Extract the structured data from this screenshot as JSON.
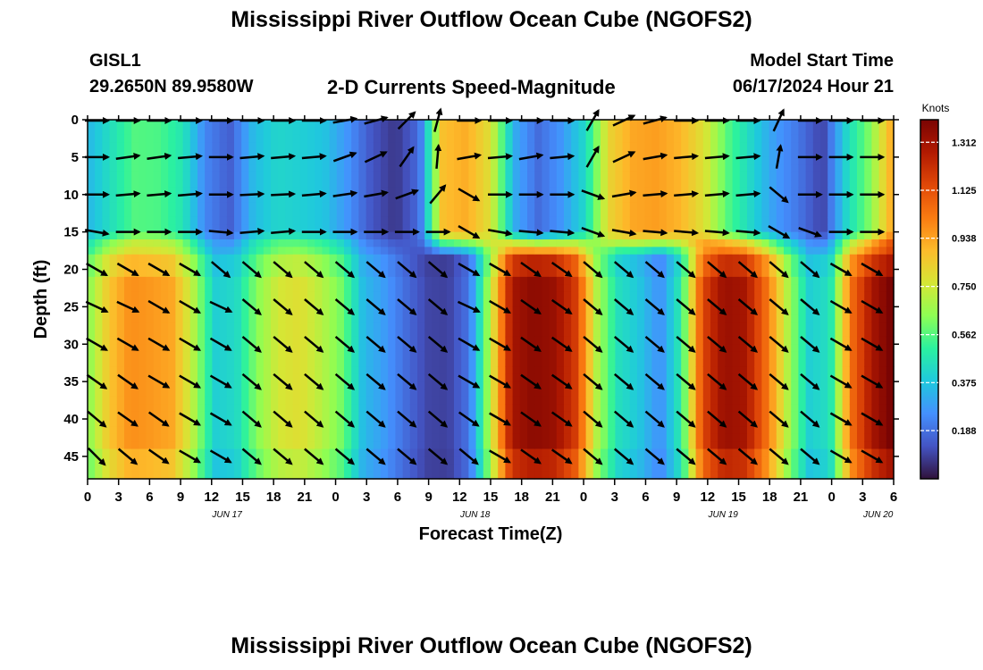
{
  "header": {
    "title": "Mississippi River Outflow Ocean Cube (NGOFS2)",
    "station": "GISL1",
    "coords": "29.2650N  89.9580W",
    "product": "2-D Currents Speed-Magnitude",
    "model_start_label": "Model Start Time",
    "model_start_value": "06/17/2024 Hour 21"
  },
  "footer": {
    "title": "Mississippi River Outflow Ocean Cube (NGOFS2)"
  },
  "chart_data": {
    "type": "heatmap",
    "title": "2-D Currents Speed-Magnitude",
    "xlabel": "Forecast Time(Z)",
    "ylabel": "Depth (ft)",
    "x_ticks": [
      "0",
      "3",
      "6",
      "9",
      "12",
      "15",
      "18",
      "21",
      "0",
      "3",
      "6",
      "9",
      "12",
      "15",
      "18",
      "21",
      "0",
      "3",
      "6",
      "9",
      "12",
      "15",
      "18",
      "21",
      "0",
      "3",
      "6"
    ],
    "date_labels": [
      {
        "text": "JUN 17",
        "tick_index": 4.5
      },
      {
        "text": "JUN 18",
        "tick_index": 12.5
      },
      {
        "text": "JUN 19",
        "tick_index": 20.5
      },
      {
        "text": "JUN 20",
        "tick_index": 25.5
      }
    ],
    "y_ticks": [
      "0",
      "5",
      "10",
      "15",
      "20",
      "25",
      "30",
      "35",
      "40",
      "45"
    ],
    "y_range": [
      0,
      48
    ],
    "y_inverted": true,
    "colorbar": {
      "label": "Knots",
      "ticks": [
        "1.312",
        "1.125",
        "0.938",
        "0.750",
        "0.562",
        "0.375",
        "0.188"
      ],
      "range": [
        0,
        1.4
      ],
      "colors": [
        "#30123b",
        "#4454c4",
        "#4490fe",
        "#1fc9dd",
        "#2bf19f",
        "#8efe53",
        "#d6e635",
        "#fdbb2b",
        "#fa7b11",
        "#e04808",
        "#b21a01",
        "#7a0403"
      ]
    },
    "surface_layer_depths": [
      0,
      5,
      10,
      15
    ],
    "deep_layer_depths": [
      20,
      25,
      30,
      35,
      40,
      45
    ],
    "surface_speed_by_column": [
      0.34,
      0.45,
      0.56,
      0.55,
      0.47,
      0.23,
      0.15,
      0.35,
      0.42,
      0.4,
      0.37,
      0.26,
      0.13,
      0.07,
      0.18,
      0.88,
      0.92,
      0.78,
      0.32,
      0.18,
      0.27,
      0.43,
      0.82,
      0.93,
      0.95,
      0.9,
      0.78,
      0.56,
      0.42,
      0.28,
      0.2,
      0.09,
      0.42,
      0.62,
      0.95
    ],
    "deep_speed_by_column": [
      0.62,
      0.86,
      0.98,
      0.96,
      0.93,
      0.7,
      0.4,
      0.43,
      0.63,
      0.76,
      0.79,
      0.71,
      0.6,
      0.35,
      0.28,
      0.18,
      0.1,
      0.09,
      0.2,
      0.72,
      1.3,
      1.36,
      1.33,
      1.18,
      0.7,
      0.45,
      0.38,
      0.25,
      0.5,
      1.15,
      1.33,
      1.3,
      1.05,
      0.7,
      0.4,
      0.45,
      1.05,
      1.3,
      1.42
    ],
    "vector_columns": [
      0,
      2.5,
      6,
      9,
      15,
      16,
      20,
      24,
      4.5,
      5,
      5.5,
      6,
      12.75,
      15.5,
      18.5,
      21.5,
      2,
      3.5,
      6.5,
      10,
      13,
      16,
      19,
      22,
      0,
      2,
      4.5
    ],
    "arrow_angles_by_row": {
      "0": [
        0,
        0,
        0,
        0,
        0,
        0,
        0,
        0,
        -10,
        -15,
        -45,
        -75,
        0,
        0,
        0,
        0,
        -60,
        -25,
        -15,
        0,
        0,
        0,
        -65,
        0,
        0,
        0
      ],
      "5": [
        0,
        -8,
        -8,
        -5,
        0,
        -5,
        -5,
        -5,
        -20,
        -25,
        -55,
        -85,
        -10,
        -5,
        -10,
        -5,
        -60,
        -25,
        -10,
        -5,
        -5,
        -5,
        -80,
        0,
        0,
        0
      ],
      "10": [
        0,
        -5,
        -5,
        -5,
        0,
        -3,
        -3,
        -5,
        -8,
        -10,
        -20,
        -50,
        30,
        0,
        0,
        0,
        20,
        -10,
        -5,
        -5,
        -5,
        -5,
        40,
        0,
        0,
        0
      ],
      "15": [
        10,
        0,
        0,
        0,
        5,
        -5,
        -5,
        0,
        0,
        0,
        0,
        0,
        30,
        10,
        5,
        5,
        20,
        10,
        5,
        5,
        5,
        5,
        30,
        20,
        0,
        0
      ],
      "20": [
        30,
        30,
        30,
        30,
        40,
        40,
        40,
        40,
        40,
        40,
        40,
        40,
        30,
        30,
        35,
        35,
        40,
        40,
        40,
        40,
        40,
        40,
        40,
        40,
        30,
        30,
        30
      ],
      "25": [
        25,
        25,
        30,
        30,
        25,
        40,
        40,
        40,
        40,
        40,
        40,
        40,
        25,
        30,
        35,
        35,
        40,
        40,
        40,
        40,
        40,
        40,
        40,
        40,
        30,
        30,
        30
      ],
      "30": [
        30,
        30,
        30,
        30,
        30,
        40,
        40,
        40,
        40,
        40,
        40,
        40,
        30,
        30,
        35,
        35,
        40,
        40,
        40,
        40,
        40,
        40,
        40,
        40,
        30,
        30,
        30
      ],
      "35": [
        35,
        35,
        30,
        30,
        30,
        40,
        40,
        40,
        40,
        40,
        40,
        40,
        30,
        30,
        35,
        35,
        40,
        40,
        40,
        40,
        40,
        40,
        40,
        40,
        30,
        30,
        30
      ],
      "40": [
        40,
        35,
        35,
        30,
        30,
        40,
        40,
        40,
        40,
        40,
        40,
        40,
        35,
        30,
        35,
        35,
        40,
        40,
        40,
        40,
        40,
        40,
        40,
        40,
        30,
        30,
        30
      ],
      "45": [
        45,
        40,
        35,
        30,
        30,
        40,
        40,
        40,
        40,
        40,
        40,
        40,
        40,
        30,
        35,
        35,
        40,
        40,
        40,
        40,
        40,
        40,
        40,
        40,
        30,
        30,
        30
      ]
    },
    "grid": false,
    "legend": "colorbar-right"
  }
}
